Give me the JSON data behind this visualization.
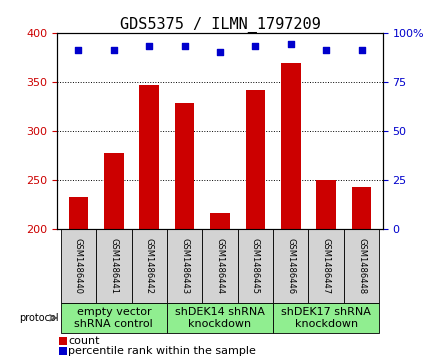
{
  "title": "GDS5375 / ILMN_1797209",
  "samples": [
    "GSM1486440",
    "GSM1486441",
    "GSM1486442",
    "GSM1486443",
    "GSM1486444",
    "GSM1486445",
    "GSM1486446",
    "GSM1486447",
    "GSM1486448"
  ],
  "counts": [
    232,
    277,
    347,
    328,
    216,
    341,
    369,
    250,
    242
  ],
  "percentiles": [
    91,
    91,
    93,
    93,
    90,
    93,
    94,
    91,
    91
  ],
  "ylim_left": [
    200,
    400
  ],
  "ylim_right": [
    0,
    100
  ],
  "yticks_left": [
    200,
    250,
    300,
    350,
    400
  ],
  "yticks_right": [
    0,
    25,
    50,
    75,
    100
  ],
  "bar_color": "#cc0000",
  "scatter_color": "#0000cc",
  "background_color": "#ffffff",
  "tick_label_color_left": "#cc0000",
  "tick_label_color_right": "#0000cc",
  "groups": [
    {
      "label": "empty vector\nshRNA control",
      "start": 0,
      "end": 3,
      "color": "#90ee90"
    },
    {
      "label": "shDEK14 shRNA\nknockdown",
      "start": 3,
      "end": 6,
      "color": "#90ee90"
    },
    {
      "label": "shDEK17 shRNA\nknockdown",
      "start": 6,
      "end": 9,
      "color": "#90ee90"
    }
  ],
  "protocol_label": "protocol",
  "legend_count_label": "count",
  "legend_percentile_label": "percentile rank within the sample",
  "title_fontsize": 11,
  "axis_fontsize": 8,
  "legend_fontsize": 8,
  "sample_fontsize": 6,
  "group_fontsize": 8
}
